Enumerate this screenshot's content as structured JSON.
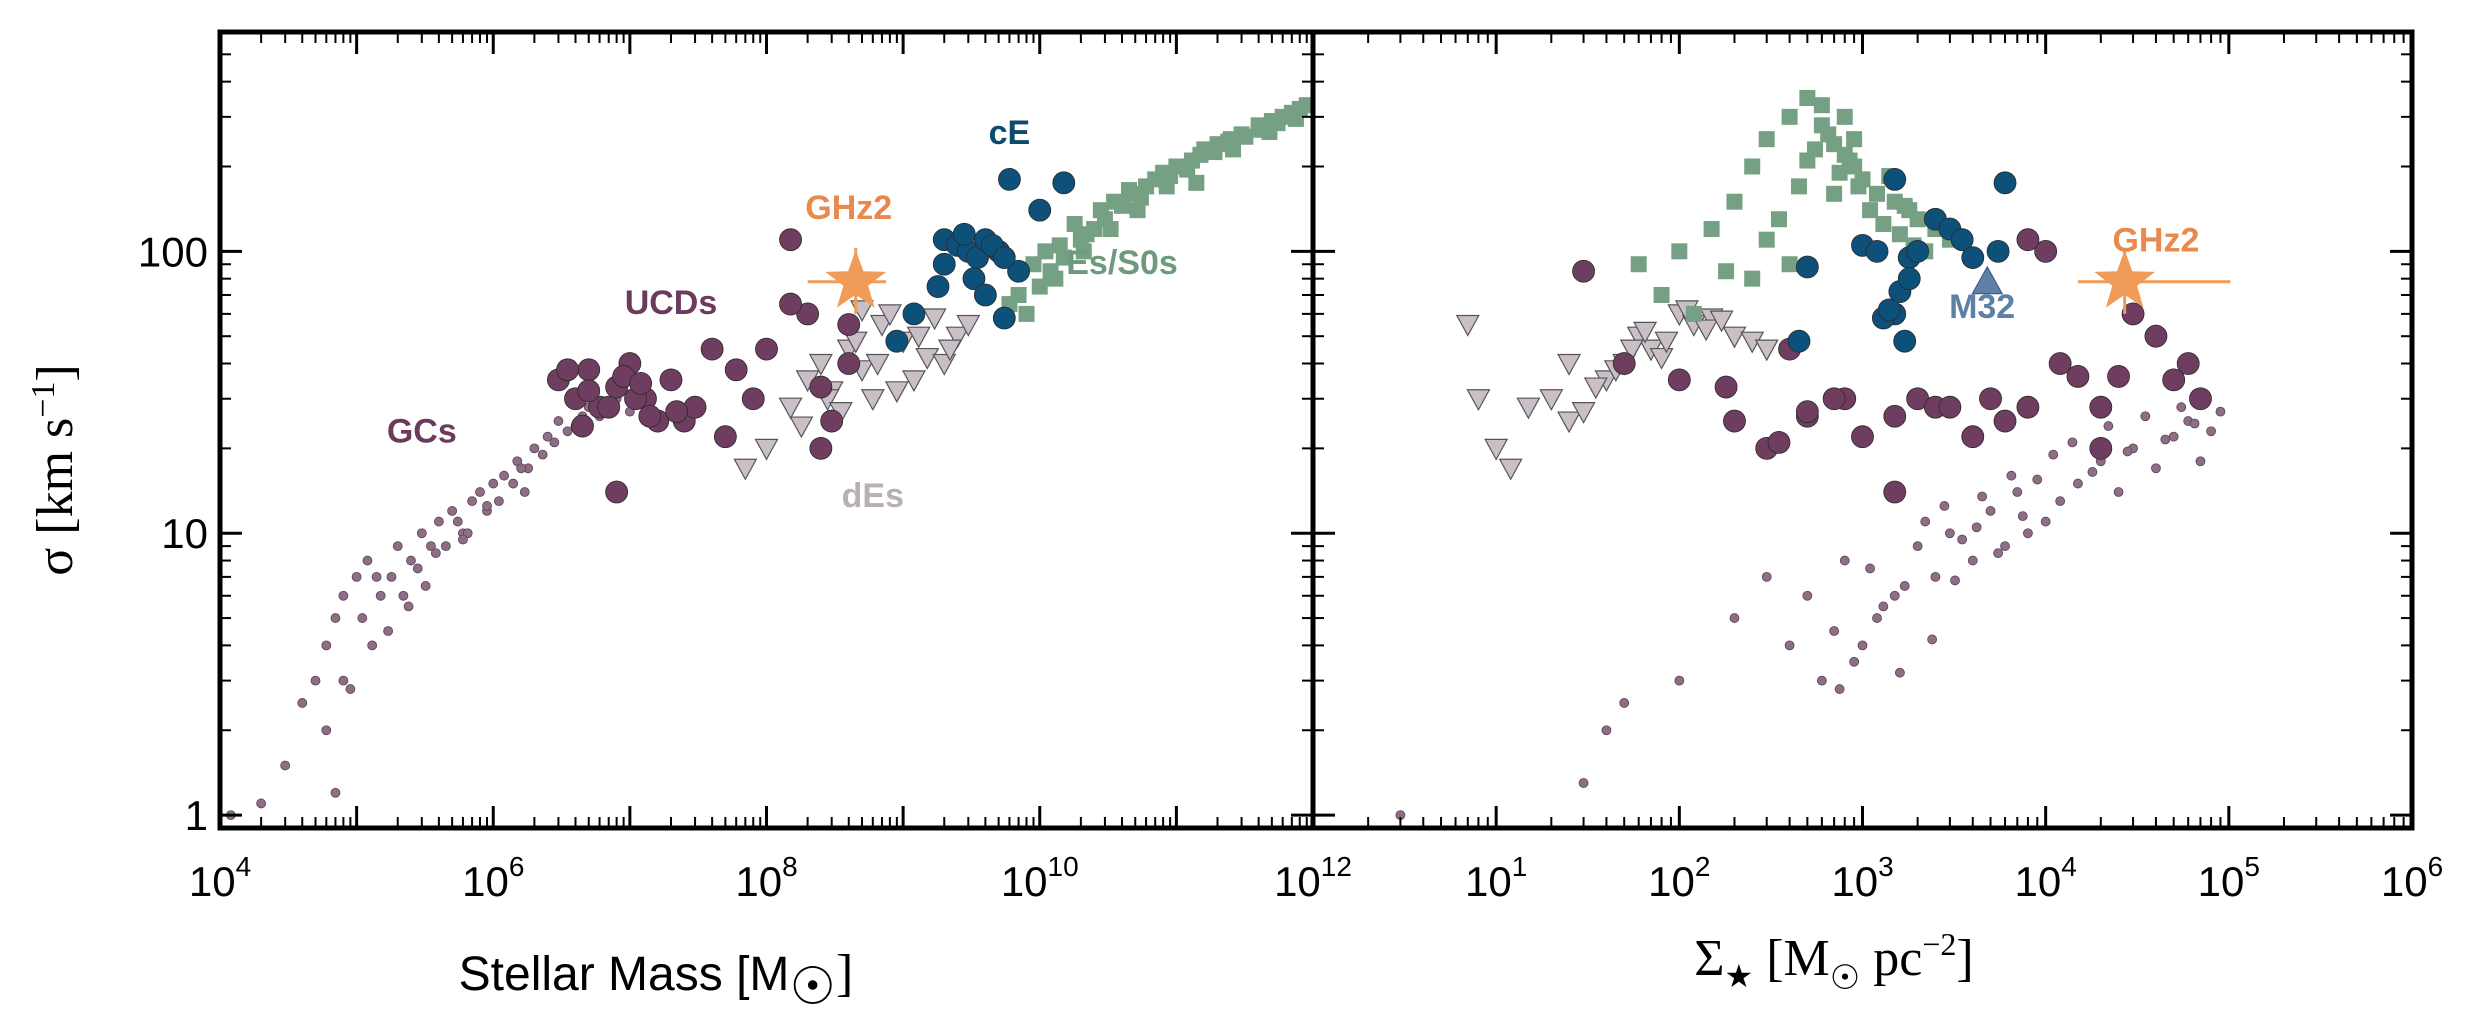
{
  "chart_data": [
    {
      "type": "scatter",
      "panel": "left",
      "xlabel": "Stellar Mass [M☉]",
      "xlabel_parts": [
        "Stellar Mass [M",
        "☉",
        "]"
      ],
      "ylabel_parts": [
        "σ [km s",
        "−1",
        "]"
      ],
      "xscale": "log",
      "yscale": "log",
      "xlim": [
        10000,
        1000000000000
      ],
      "ylim": [
        0.9,
        600
      ],
      "x_ticks": [
        {
          "base": "10",
          "exp": "4",
          "v": 10000
        },
        {
          "base": "10",
          "exp": "6",
          "v": 1000000
        },
        {
          "base": "10",
          "exp": "8",
          "v": 100000000
        },
        {
          "base": "10",
          "exp": "10",
          "v": 10000000000
        },
        {
          "base": "10",
          "exp": "12",
          "v": 1000000000000
        }
      ],
      "y_ticks": [
        {
          "label": "1",
          "v": 1
        },
        {
          "label": "10",
          "v": 10
        },
        {
          "label": "100",
          "v": 100
        }
      ],
      "annotations": [
        {
          "text": "cE",
          "x": 6000000000,
          "y": 240,
          "color": "#0c4a6e"
        },
        {
          "text": "GHz2",
          "x": 400000000,
          "y": 130,
          "color": "#e8894d"
        },
        {
          "text": "Es/S0s",
          "x": 40000000000,
          "y": 83,
          "color": "#6e9a7c"
        },
        {
          "text": "UCDs",
          "x": 20000000,
          "y": 60,
          "color": "#6b3a5c"
        },
        {
          "text": "GCs",
          "x": 300000,
          "y": 21,
          "color": "#6b3a5c"
        },
        {
          "text": "dEs",
          "x": 600000000,
          "y": 12.4,
          "color": "#b9b0b6"
        }
      ],
      "series": [
        {
          "name": "Es/S0s",
          "marker": "square",
          "color": "#76a083",
          "x": [
            8000000000.0,
            10000000000.0,
            12000000000.0,
            15000000000.0,
            20000000000.0,
            25000000000.0,
            30000000000.0,
            40000000000.0,
            50000000000.0,
            60000000000.0,
            80000000000.0,
            100000000000.0,
            130000000000.0,
            160000000000.0,
            200000000000.0,
            250000000000.0,
            300000000000.0,
            400000000000.0,
            500000000000.0,
            600000000000.0,
            800000000000.0,
            900000000000.0,
            7000000000.0,
            9000000000.0,
            11000000000.0,
            14000000000.0,
            18000000000.0,
            22000000000.0,
            28000000000.0,
            35000000000.0,
            45000000000.0,
            55000000000.0,
            70000000000.0,
            90000000000.0,
            120000000000.0,
            150000000000.0,
            190000000000.0,
            240000000000.0,
            320000000000.0,
            420000000000.0,
            550000000000.0,
            700000000000.0,
            6000000000.0,
            13000000000.0,
            21000000000.0,
            33000000000.0,
            52000000000.0,
            85000000000.0,
            140000000000.0,
            260000000000.0,
            480000000000.0,
            750000000000.0
          ],
          "y": [
            60,
            75,
            85,
            95,
            110,
            120,
            130,
            145,
            160,
            170,
            190,
            200,
            210,
            230,
            240,
            250,
            260,
            280,
            290,
            300,
            320,
            330,
            70,
            90,
            100,
            105,
            125,
            115,
            140,
            150,
            165,
            155,
            180,
            185,
            195,
            220,
            225,
            245,
            255,
            270,
            285,
            310,
            65,
            80,
            100,
            120,
            140,
            170,
            175,
            230,
            265,
            295
          ]
        },
        {
          "name": "cE",
          "marker": "circle",
          "color": "#0d5079",
          "x": [
            2000000000.0,
            2500000000.0,
            3000000000.0,
            3500000000.0,
            4000000000.0,
            5000000000.0,
            6000000000.0,
            7000000000.0,
            10000000000.0,
            15000000000.0,
            2000000000.0,
            2800000000.0,
            3300000000.0,
            4500000000.0,
            5500000000.0,
            1200000000.0,
            900000000.0,
            1800000000.0,
            4000000000.0,
            5500000000.0
          ],
          "y": [
            110,
            105,
            100,
            95,
            110,
            100,
            180,
            85,
            140,
            175,
            90,
            115,
            80,
            105,
            95,
            60,
            48,
            75,
            70,
            58
          ]
        },
        {
          "name": "UCDs",
          "marker": "circle",
          "color": "#6f3d5f",
          "x": [
            3000000.0,
            4000000.0,
            5000000.0,
            6000000.0,
            8000000.0,
            10000000.0,
            13000000.0,
            16000000.0,
            20000000.0,
            25000000.0,
            30000000.0,
            40000000.0,
            50000000.0,
            60000000.0,
            80000000.0,
            100000000.0,
            150000000.0,
            200000000.0,
            250000000.0,
            300000000.0,
            400000000.0,
            5000000.0,
            7000000.0,
            9000000.0,
            11000000.0,
            14000000.0,
            3500000.0,
            4500000.0,
            12000000.0,
            22000000.0,
            8000000.0,
            150000000.0,
            400000000.0,
            250000000.0
          ],
          "y": [
            35,
            30,
            38,
            28,
            33,
            40,
            30,
            25,
            35,
            25,
            28,
            45,
            22,
            38,
            30,
            45,
            110,
            60,
            33,
            25,
            40,
            32,
            28,
            36,
            30,
            26,
            38,
            24,
            34,
            27,
            14,
            65,
            55,
            20
          ]
        },
        {
          "name": "dEs",
          "marker": "triangle-down",
          "color": "#cbbfc7",
          "x": [
            70000000.0,
            100000000.0,
            150000000.0,
            200000000.0,
            250000000.0,
            300000000.0,
            400000000.0,
            500000000.0,
            600000000.0,
            700000000.0,
            800000000.0,
            1000000000.0,
            1200000000.0,
            1500000000.0,
            2000000000.0,
            2500000000.0,
            3000000000.0,
            180000000.0,
            280000000.0,
            350000000.0,
            450000000.0,
            650000000.0,
            900000000.0,
            1300000000.0,
            1700000000.0,
            2200000000.0,
            500000000.0
          ],
          "y": [
            17,
            20,
            28,
            35,
            40,
            32,
            45,
            38,
            30,
            55,
            60,
            48,
            35,
            42,
            40,
            50,
            55,
            24,
            30,
            27,
            48,
            40,
            32,
            50,
            58,
            45,
            62
          ]
        },
        {
          "name": "GCs",
          "marker": "small-circle",
          "color": "#8d6e86",
          "x": [
            12000.0,
            20000.0,
            30000.0,
            40000.0,
            50000.0,
            60000.0,
            70000.0,
            80000.0,
            100000.0,
            120000.0,
            150000.0,
            180000.0,
            200000.0,
            250000.0,
            300000.0,
            350000.0,
            400000.0,
            500000.0,
            600000.0,
            700000.0,
            800000.0,
            1000000.0,
            1200000.0,
            1500000.0,
            1800000.0,
            2000000.0,
            2500000.0,
            3000000.0,
            4000000.0,
            5000000.0,
            6000000.0,
            8000000.0,
            10000000.0,
            60000.0,
            80000.0,
            110000.0,
            140000.0,
            170000.0,
            220000.0,
            280000.0,
            320000.0,
            450000.0,
            550000.0,
            650000.0,
            900000.0,
            1100000.0,
            1400000.0,
            1700000.0,
            2300000.0,
            2800000.0,
            3500000.0,
            4500000.0,
            70000.0,
            90000.0,
            130000.0,
            240000.0,
            380000.0,
            600000.0,
            900000.0,
            1600000.0
          ],
          "y": [
            1,
            1.1,
            1.5,
            2.5,
            3,
            4,
            5,
            6,
            7,
            8,
            6,
            7,
            9,
            8,
            10,
            9,
            11,
            12,
            10,
            13,
            14,
            15,
            16,
            18,
            17,
            20,
            22,
            25,
            24,
            28,
            26,
            30,
            27,
            2,
            3,
            5,
            7,
            4.5,
            6,
            7.5,
            6.5,
            9,
            11,
            10,
            12,
            13,
            15,
            14,
            19,
            21,
            23,
            26,
            1.2,
            2.8,
            4,
            5.5,
            8.5,
            9.5,
            12.5,
            17
          ]
        },
        {
          "name": "GHz2",
          "marker": "star",
          "color": "#f19b58",
          "x": [
            450000000
          ],
          "y": [
            78
          ],
          "xerr": [
            250000000,
            300000000
          ],
          "yerr": [
            18,
            25
          ]
        }
      ]
    },
    {
      "type": "scatter",
      "panel": "right",
      "xlabel_parts": [
        "Σ",
        "★",
        " [M",
        "☉",
        " pc",
        "−2",
        "]"
      ],
      "xscale": "log",
      "yscale": "log",
      "xlim": [
        1,
        1000000
      ],
      "ylim": [
        0.9,
        600
      ],
      "x_ticks": [
        {
          "base": "10",
          "exp": "1",
          "v": 10
        },
        {
          "base": "10",
          "exp": "2",
          "v": 100
        },
        {
          "base": "10",
          "exp": "3",
          "v": 1000
        },
        {
          "base": "10",
          "exp": "4",
          "v": 10000
        },
        {
          "base": "10",
          "exp": "5",
          "v": 100000
        },
        {
          "base": "10",
          "exp": "6",
          "v": 1000000
        }
      ],
      "annotations": [
        {
          "text": "GHz2",
          "x": 40000,
          "y": 100,
          "color": "#e8894d"
        },
        {
          "text": "M32",
          "x": 4500,
          "y": 58,
          "color": "#5d80a6"
        }
      ],
      "series": [
        {
          "name": "Es/S0s",
          "marker": "square",
          "color": "#76a083",
          "x": [
            60,
            80,
            100,
            150,
            200,
            250,
            300,
            400,
            500,
            600,
            700,
            800,
            900,
            1000,
            1200,
            1500,
            1800,
            2000,
            2500,
            3000,
            250,
            350,
            450,
            550,
            650,
            750,
            850,
            950,
            1100,
            1300,
            1600,
            1900,
            2200,
            600,
            800,
            400,
            300,
            500,
            700,
            900,
            1400,
            1700,
            120,
            180
          ],
          "y": [
            90,
            70,
            100,
            120,
            150,
            200,
            250,
            300,
            350,
            280,
            240,
            220,
            200,
            180,
            160,
            150,
            140,
            130,
            120,
            110,
            80,
            130,
            170,
            230,
            260,
            190,
            210,
            170,
            140,
            125,
            115,
            105,
            100,
            330,
            300,
            90,
            110,
            210,
            160,
            250,
            185,
            145,
            60,
            85
          ]
        },
        {
          "name": "cE",
          "marker": "circle",
          "color": "#0d5079",
          "x": [
            450,
            500,
            1000,
            1200,
            1500,
            1800,
            2000,
            2500,
            3000,
            3500,
            4000,
            6000,
            1500,
            1700,
            1300,
            1400,
            1600,
            1800,
            5500
          ],
          "y": [
            48,
            88,
            105,
            100,
            180,
            95,
            100,
            130,
            120,
            110,
            95,
            175,
            60,
            48,
            58,
            62,
            72,
            80,
            100
          ],
          "ghz2_note": ""
        },
        {
          "name": "UCDs",
          "marker": "circle",
          "color": "#6f3d5f",
          "x": [
            30,
            50,
            100,
            200,
            300,
            400,
            500,
            800,
            1000,
            1500,
            2000,
            2500,
            3000,
            4000,
            5000,
            6000,
            8000,
            10000,
            12000,
            15000,
            20000,
            25000,
            30000,
            40000,
            50000,
            60000,
            70000,
            8000,
            20000,
            1500,
            500,
            180,
            350,
            700
          ],
          "y": [
            85,
            40,
            35,
            25,
            20,
            45,
            26,
            30,
            22,
            26,
            30,
            28,
            28,
            22,
            30,
            25,
            28,
            100,
            40,
            36,
            28,
            36,
            60,
            50,
            35,
            40,
            30,
            110,
            20,
            14,
            27,
            33,
            21,
            30
          ]
        },
        {
          "name": "dEs",
          "marker": "triangle-down",
          "color": "#cbbfc7",
          "x": [
            7,
            8,
            10,
            12,
            15,
            20,
            25,
            30,
            40,
            50,
            60,
            70,
            80,
            100,
            120,
            150,
            200,
            250,
            300,
            25,
            35,
            45,
            55,
            65,
            85,
            110,
            140,
            170
          ],
          "y": [
            55,
            30,
            20,
            17,
            28,
            30,
            25,
            27,
            35,
            40,
            50,
            45,
            42,
            60,
            55,
            58,
            50,
            48,
            45,
            40,
            33,
            38,
            45,
            52,
            48,
            62,
            53,
            57
          ]
        },
        {
          "name": "GCs",
          "marker": "small-circle",
          "color": "#8d6e86",
          "x": [
            3,
            30,
            40,
            50,
            100,
            200,
            300,
            400,
            500,
            600,
            800,
            1000,
            1200,
            1500,
            2000,
            2500,
            3000,
            4000,
            5000,
            6000,
            7000,
            8000,
            10000,
            12000,
            15000,
            20000,
            25000,
            30000,
            40000,
            50000,
            60000,
            70000,
            80000,
            90000,
            700,
            900,
            1100,
            1300,
            1700,
            2200,
            2800,
            3500,
            4500,
            5500,
            6500,
            7500,
            9000,
            11000,
            14000,
            18000,
            22000,
            28000,
            35000,
            45000,
            55000,
            65000,
            750,
            1600,
            2400,
            3200,
            4200
          ],
          "y": [
            1,
            1.3,
            2,
            2.5,
            3,
            5,
            7,
            4,
            6,
            3,
            8,
            4,
            5,
            6,
            9,
            7,
            10,
            8,
            12,
            9,
            14,
            10,
            11,
            13,
            15,
            18,
            14,
            20,
            17,
            22,
            25,
            18,
            23,
            27,
            4.5,
            3.5,
            7.5,
            5.5,
            6.5,
            11,
            12.5,
            9.5,
            13.5,
            8.5,
            16,
            11.5,
            15.5,
            19,
            21,
            16.5,
            24,
            19.5,
            26,
            21.5,
            28,
            24.5,
            2.8,
            3.2,
            4.2,
            6.8,
            10.5
          ]
        },
        {
          "name": "M32",
          "marker": "triangle-up",
          "color": "#5d80a6",
          "x": [
            4800
          ],
          "y": [
            78
          ]
        },
        {
          "name": "GHz2",
          "marker": "star",
          "color": "#f19b58",
          "x": [
            27000
          ],
          "y": [
            78
          ],
          "xerr": [
            12000,
            75000
          ],
          "yerr": [
            18,
            25
          ]
        }
      ]
    }
  ]
}
